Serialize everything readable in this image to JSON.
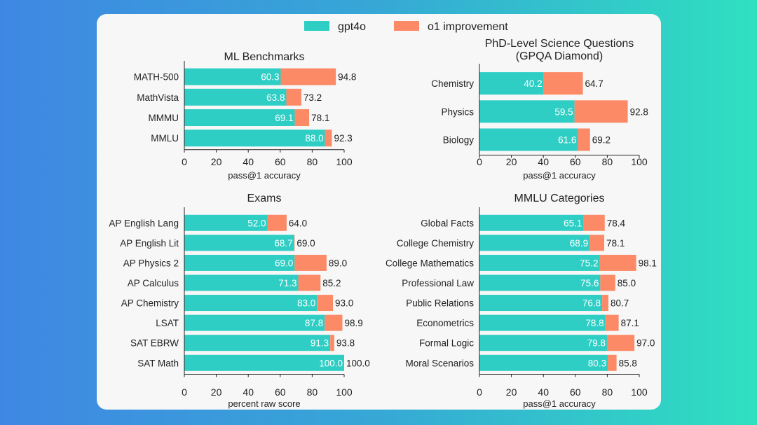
{
  "colors": {
    "gpt4o": "#2ecec4",
    "o1": "#fd8a67",
    "axis": "#222222"
  },
  "legend": [
    {
      "label": "gpt4o",
      "color": "#2ecec4"
    },
    {
      "label": "o1 improvement",
      "color": "#fd8a67"
    }
  ],
  "chart_data": [
    {
      "type": "bar",
      "title": "ML Benchmarks",
      "xlabel": "pass@1 accuracy",
      "xlim": [
        0,
        100
      ],
      "ticks": [
        0,
        20,
        40,
        60,
        80,
        100
      ],
      "categories": [
        "MATH-500",
        "MathVista",
        "MMMU",
        "MMLU"
      ],
      "series": [
        {
          "name": "gpt4o",
          "values": [
            60.3,
            63.8,
            69.1,
            88.0
          ]
        },
        {
          "name": "o1 improvement",
          "values": [
            94.8,
            73.2,
            78.1,
            92.3
          ]
        }
      ],
      "labels_gpt4o": [
        "60.3",
        "63.8",
        "69.1",
        "88.0"
      ],
      "labels_o1": [
        "94.8",
        "73.2",
        "78.1",
        "92.3"
      ]
    },
    {
      "type": "bar",
      "title": "PhD-Level Science Questions\n(GPQA Diamond)",
      "xlabel": "pass@1 accuracy",
      "xlim": [
        0,
        100
      ],
      "ticks": [
        0,
        20,
        40,
        60,
        80,
        100
      ],
      "categories": [
        "Chemistry",
        "Physics",
        "Biology"
      ],
      "series": [
        {
          "name": "gpt4o",
          "values": [
            40.2,
            59.5,
            61.6
          ]
        },
        {
          "name": "o1 improvement",
          "values": [
            64.7,
            92.8,
            69.2
          ]
        }
      ],
      "labels_gpt4o": [
        "40.2",
        "59.5",
        "61.6"
      ],
      "labels_o1": [
        "64.7",
        "92.8",
        "69.2"
      ]
    },
    {
      "type": "bar",
      "title": "Exams",
      "xlabel": "percent raw score",
      "xlim": [
        0,
        100
      ],
      "ticks": [
        0,
        20,
        40,
        60,
        80,
        100
      ],
      "categories": [
        "AP English Lang",
        "AP English Lit",
        "AP Physics 2",
        "AP Calculus",
        "AP Chemistry",
        "LSAT",
        "SAT EBRW",
        "SAT Math"
      ],
      "series": [
        {
          "name": "gpt4o",
          "values": [
            52.0,
            68.7,
            69.0,
            71.3,
            83.0,
            87.8,
            91.3,
            100.0
          ]
        },
        {
          "name": "o1 improvement",
          "values": [
            64.0,
            69.0,
            89.0,
            85.2,
            93.0,
            98.9,
            93.8,
            100.0
          ]
        }
      ],
      "labels_gpt4o": [
        "52.0",
        "68.7",
        "69.0",
        "71.3",
        "83.0",
        "87.8",
        "91.3",
        "100.0"
      ],
      "labels_o1": [
        "64.0",
        "69.0",
        "89.0",
        "85.2",
        "93.0",
        "98.9",
        "93.8",
        "100.0"
      ]
    },
    {
      "type": "bar",
      "title": "MMLU Categories",
      "xlabel": "pass@1 accuracy",
      "xlim": [
        0,
        100
      ],
      "ticks": [
        0,
        20,
        40,
        60,
        80,
        100
      ],
      "categories": [
        "Global Facts",
        "College Chemistry",
        "College Mathematics",
        "Professional Law",
        "Public Relations",
        "Econometrics",
        "Formal Logic",
        "Moral Scenarios"
      ],
      "series": [
        {
          "name": "gpt4o",
          "values": [
            65.1,
            68.9,
            75.2,
            75.6,
            76.8,
            78.8,
            79.8,
            80.3
          ]
        },
        {
          "name": "o1 improvement",
          "values": [
            78.4,
            78.1,
            98.1,
            85.0,
            80.7,
            87.1,
            97.0,
            85.8
          ]
        }
      ],
      "labels_gpt4o": [
        "65.1",
        "68.9",
        "75.2",
        "75.6",
        "76.8",
        "78.8",
        "79.8",
        "80.3"
      ],
      "labels_o1": [
        "78.4",
        "78.1",
        "98.1",
        "85.0",
        "80.7",
        "87.1",
        "97.0",
        "85.8"
      ]
    }
  ]
}
